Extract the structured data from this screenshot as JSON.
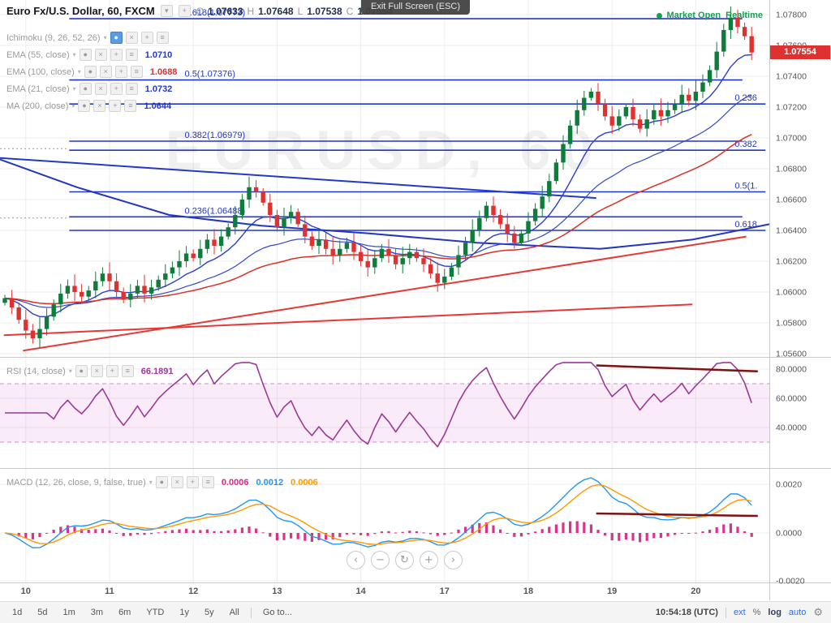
{
  "tooltip": "Exit Full Screen (ESC)",
  "header": {
    "title": "Euro Fx/U.S. Dollar, 60, FXCM",
    "ohlc": [
      {
        "k": "O",
        "v": "1.07633"
      },
      {
        "k": "H",
        "v": "1.07648"
      },
      {
        "k": "L",
        "v": "1.07538"
      },
      {
        "k": "C",
        "v": "1.07554"
      }
    ],
    "market_open": "Market Open",
    "realtime": "Realtime",
    "status_color": "#16a04f"
  },
  "legend": [
    {
      "id": "ichimoku",
      "label": "Ichimoku (9, 26, 52, 26)",
      "value": "",
      "value_color": "",
      "first_box_active": true
    },
    {
      "id": "ema55",
      "label": "EMA (55, close)",
      "value": "1.0710",
      "value_color": "#2239c8",
      "first_box_active": false
    },
    {
      "id": "ema100",
      "label": "EMA (100, close)",
      "value": "1.0688",
      "value_color": "#dd3030",
      "first_box_active": false
    },
    {
      "id": "ema21",
      "label": "EMA (21, close)",
      "value": "1.0732",
      "value_color": "#2239c8",
      "first_box_active": false
    },
    {
      "id": "ma200",
      "label": "MA (200, close)",
      "value": "1.0644",
      "value_color": "#2239c8",
      "first_box_active": false
    }
  ],
  "rsi_legend": {
    "label": "RSI (14, close)",
    "value": "66.1891",
    "value_color": "#9b3a97"
  },
  "macd_legend": {
    "label": "MACD (12, 26, close, 9, false, true)",
    "values": [
      {
        "v": "0.0006",
        "color": "#e91e8c"
      },
      {
        "v": "0.0012",
        "color": "#2196f3"
      },
      {
        "v": "0.0006",
        "color": "#ff9800"
      }
    ]
  },
  "price_badge": {
    "text": "1.07554",
    "bg": "#e03131"
  },
  "watermark": "EURUSD, 60",
  "nav_buttons": [
    "‹",
    "−",
    "↻",
    "+",
    "›"
  ],
  "toolbar": {
    "ranges": [
      "1d",
      "5d",
      "1m",
      "3m",
      "6m",
      "YTD",
      "1y",
      "5y",
      "All"
    ],
    "goto": "Go to...",
    "clock": "10:54:18 (UTC)",
    "right": [
      {
        "t": "ext",
        "c": "#2a6df4"
      },
      {
        "t": "%",
        "c": "#666666"
      },
      {
        "t": "log",
        "c": "#33405c"
      },
      {
        "t": "auto",
        "c": "#2a6df4"
      }
    ]
  },
  "chart_data": {
    "type": "candlestick",
    "symbol": "EURUSD",
    "timeframe": "60",
    "exchange": "FXCM",
    "x_labels": [
      "10",
      "11",
      "12",
      "13",
      "14",
      "17",
      "18",
      "19",
      "20"
    ],
    "bars_per_day": 12,
    "up_color": "#0e7c3a",
    "down_color": "#e03131",
    "price_axis": {
      "ticks": [
        "1.07800",
        "1.07600",
        "1.07400",
        "1.07200",
        "1.07000",
        "1.06800",
        "1.06600",
        "1.06400",
        "1.06200",
        "1.06000",
        "1.05800",
        "1.05600"
      ],
      "min": 1.0556,
      "max": 1.0782
    },
    "closes": [
      1.0596,
      1.059,
      1.0582,
      1.0575,
      1.057,
      1.0576,
      1.0584,
      1.0592,
      1.0599,
      1.0604,
      1.06,
      1.0597,
      1.0601,
      1.0607,
      1.0612,
      1.0607,
      1.06,
      1.0595,
      1.0599,
      1.0604,
      1.0599,
      1.0603,
      1.0608,
      1.0612,
      1.0616,
      1.062,
      1.0625,
      1.0622,
      1.0628,
      1.0634,
      1.063,
      1.0636,
      1.0642,
      1.065,
      1.066,
      1.0668,
      1.0665,
      1.0658,
      1.065,
      1.0642,
      1.0648,
      1.0652,
      1.0644,
      1.0636,
      1.063,
      1.0634,
      1.0628,
      1.0624,
      1.0628,
      1.0632,
      1.0626,
      1.062,
      1.0616,
      1.0622,
      1.0628,
      1.0624,
      1.0618,
      1.0622,
      1.0626,
      1.0622,
      1.0618,
      1.0612,
      1.0606,
      1.061,
      1.0616,
      1.0624,
      1.0632,
      1.064,
      1.0648,
      1.0656,
      1.065,
      1.0644,
      1.0638,
      1.0632,
      1.0638,
      1.0646,
      1.0654,
      1.0662,
      1.0672,
      1.0684,
      1.0696,
      1.0708,
      1.0718,
      1.0726,
      1.073,
      1.0722,
      1.0714,
      1.0708,
      1.0714,
      1.072,
      1.0712,
      1.0706,
      1.0712,
      1.0718,
      1.0714,
      1.0718,
      1.0722,
      1.0728,
      1.0724,
      1.073,
      1.0736,
      1.0744,
      1.0756,
      1.077,
      1.0778,
      1.0772,
      1.0766,
      1.07554
    ],
    "ema_overlays": [
      {
        "name": "EMA21",
        "period": 10,
        "color": "#2a3fd0",
        "width": 1.4
      },
      {
        "name": "EMA55",
        "period": 27,
        "color": "#3348c9",
        "width": 1.2
      },
      {
        "name": "EMA100",
        "period": 50,
        "color": "#d93025",
        "width": 1.5
      }
    ],
    "ma_lines": [
      {
        "name": "MA200",
        "color": "#2336c0",
        "width": 2,
        "points": [
          [
            0,
            1.0686
          ],
          [
            0.1,
            1.0668
          ],
          [
            0.22,
            1.065
          ],
          [
            0.34,
            1.0643
          ],
          [
            0.48,
            1.0638
          ],
          [
            0.62,
            1.0632
          ],
          [
            0.78,
            1.0628
          ],
          [
            0.9,
            1.0634
          ],
          [
            1,
            1.0644
          ]
        ]
      }
    ],
    "trendlines": [
      {
        "color": "#e53935",
        "width": 2,
        "p1": [
          0.005,
          1.0572
        ],
        "p2": [
          0.9,
          1.0592
        ]
      },
      {
        "color": "#e53935",
        "width": 2,
        "p1": [
          0.03,
          1.0562
        ],
        "p2": [
          0.97,
          1.0636
        ]
      },
      {
        "color": "#2239c8",
        "width": 2,
        "p1": [
          0.0,
          1.0687
        ],
        "p2": [
          0.775,
          1.0661
        ]
      }
    ],
    "dotted_segments": [
      {
        "price": 1.0693,
        "x1": 0,
        "x2": 0.09
      },
      {
        "price": 1.0648,
        "x1": 0,
        "x2": 0.09
      }
    ],
    "fib_sets": [
      {
        "labels_side": "left",
        "label_x": 0.24,
        "x1": 0.09,
        "x2": 0.965,
        "color": "#2137c8",
        "levels": [
          {
            "label": "0.618(1.07773)",
            "price": 1.07773
          },
          {
            "label": "0.5(1.07376)",
            "price": 1.07376
          },
          {
            "label": "0.382(1.06979)",
            "price": 1.06979
          },
          {
            "label": "0.236(1.06488)",
            "price": 1.06488
          }
        ]
      },
      {
        "labels_side": "right",
        "label_x": 0.955,
        "x1": 0.09,
        "x2": 0.995,
        "color": "#2137c8",
        "levels": [
          {
            "label": "0.236",
            "price": 1.0722
          },
          {
            "label": "0.382",
            "price": 1.0692
          },
          {
            "label": "0.5(1.",
            "price": 1.0665
          },
          {
            "label": "0.618",
            "price": 1.064
          }
        ]
      }
    ],
    "rsi": {
      "period": 7,
      "color": "#9b3a97",
      "band": [
        30,
        70
      ],
      "band_color": "rgba(218,112,214,0.14)",
      "band_line_color": "#cf8fcf",
      "ticks": [
        {
          "v": 80,
          "label": "80.0000"
        },
        {
          "v": 60,
          "label": "60.0000"
        },
        {
          "v": 40,
          "label": "40.0000"
        }
      ],
      "divergence_line": {
        "color": "#7e1111",
        "width": 2.5,
        "p1": [
          0.775,
          82.5
        ],
        "p2": [
          0.985,
          78.5
        ]
      }
    },
    "macd": {
      "fast": 6,
      "slow": 13,
      "signal": 5,
      "macd_color": "#2196f3",
      "signal_color": "#ff9800",
      "hist_color": "#d81b7f",
      "ticks": [
        {
          "v": 0.002,
          "label": "0.0020"
        },
        {
          "v": 0,
          "label": "0.0000"
        },
        {
          "v": -0.002,
          "label": "-0.0020"
        }
      ],
      "divergence_line": {
        "color": "#7e1111",
        "width": 2.5,
        "p1": [
          0.775,
          0.0008
        ],
        "p2": [
          0.985,
          0.0007
        ]
      }
    }
  }
}
